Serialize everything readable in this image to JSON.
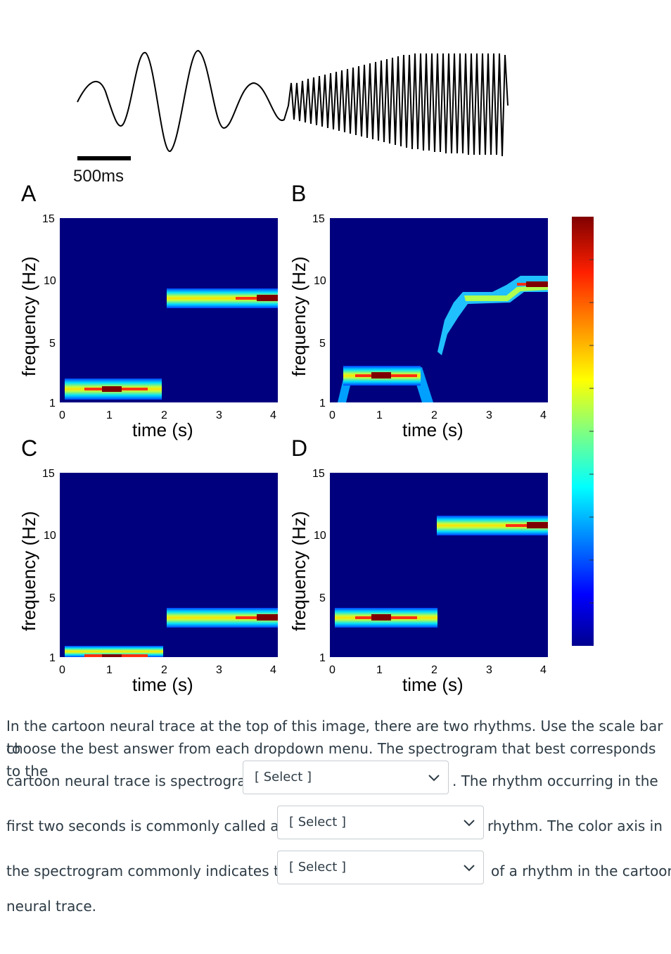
{
  "figure": {
    "scale_bar_label": "500ms",
    "panels": [
      {
        "letter": "A",
        "xlabel": "time (s)",
        "ylabel": "frequency (Hz)",
        "xticks": [
          "0",
          "1",
          "2",
          "3",
          "4"
        ],
        "yticks": [
          "1",
          "5",
          "10",
          "15"
        ]
      },
      {
        "letter": "B",
        "xlabel": "time (s)",
        "ylabel": "frequency (Hz)",
        "xticks": [
          "0",
          "1",
          "2",
          "3",
          "4"
        ],
        "yticks": [
          "1",
          "5",
          "10",
          "15"
        ]
      },
      {
        "letter": "C",
        "xlabel": "time (s)",
        "ylabel": "frequency (Hz)",
        "xticks": [
          "0",
          "1",
          "2",
          "3",
          "4"
        ],
        "yticks": [
          "1",
          "5",
          "10",
          "15"
        ]
      },
      {
        "letter": "D",
        "xlabel": "time (s)",
        "ylabel": "frequency (Hz)",
        "xticks": [
          "0",
          "1",
          "2",
          "3",
          "4"
        ],
        "yticks": [
          "1",
          "5",
          "10",
          "15"
        ]
      }
    ],
    "colors": {
      "background": "#00007f",
      "band_low": "#00c8ff",
      "band_mid": "#a0ff60",
      "band_high": "#ff3010",
      "band_peak": "#7f0000"
    }
  },
  "question": {
    "line1": "In the cartoon neural trace at the top of this image, there are two rhythms. Use the scale bar to",
    "line2": "choose the best answer from each dropdown menu. The spectrogram that best corresponds to the",
    "seg3a": "cartoon neural trace is spectrogram",
    "seg3b": ". The rhythm occurring in the",
    "seg4a": "first two seconds is commonly called a(n)",
    "seg4b": "rhythm. The color axis in",
    "seg5a": "the spectrogram commonly indicates the",
    "seg5b": "of a rhythm in the cartoon",
    "line6": "neural trace.",
    "dropdown1": "[ Select ]",
    "dropdown2": "[ Select ]",
    "dropdown3": "[ Select ]"
  }
}
